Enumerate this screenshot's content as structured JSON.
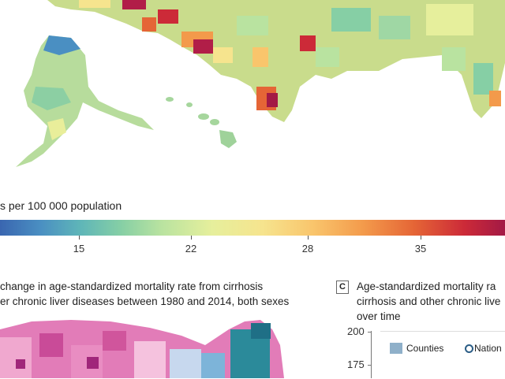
{
  "legend": {
    "title": "s per 100 000 population",
    "ticks": [
      "15",
      "22",
      "28",
      "35"
    ]
  },
  "panel_b": {
    "line1": "change in age-standardized mortality rate from cirrhosis",
    "line2": "er chronic liver diseases between 1980 and 2014, both sexes"
  },
  "panel_c": {
    "label": "C",
    "line1": "Age-standardized mortality ra",
    "line2": "cirrhosis and other chronic live",
    "line3": "over time",
    "yticks": [
      "200",
      "175"
    ],
    "legend_counties": "Counties",
    "legend_national": "Nation"
  },
  "colors": {
    "low": "#3a66b0",
    "mid": "#f6e48e",
    "high": "#a31945",
    "panel_b_increase": "#d94f9a",
    "panel_b_decrease": "#2b8a9a"
  }
}
